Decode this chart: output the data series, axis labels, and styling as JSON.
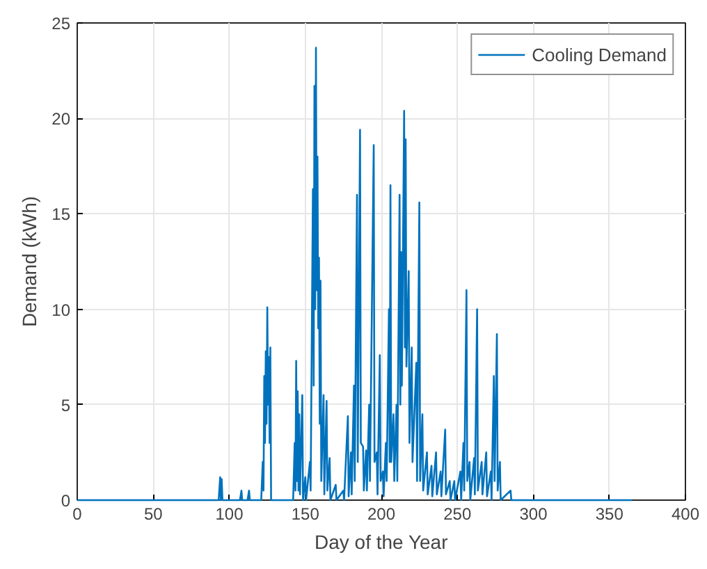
{
  "chart_data": {
    "type": "line",
    "xlabel": "Day of the Year",
    "ylabel": "Demand (kWh)",
    "xlim": [
      0,
      400
    ],
    "xticks": [
      0,
      50,
      100,
      150,
      200,
      250,
      300,
      350,
      400
    ],
    "ylim": [
      0,
      25
    ],
    "yticks": [
      0,
      5,
      10,
      15,
      20,
      25
    ],
    "grid": true,
    "legend": "top right",
    "series": [
      {
        "name": "Cooling Demand",
        "color": "#0072bd",
        "x": [
          0,
          90,
          93,
          94,
          94.5,
          95,
          95.5,
          107,
          108,
          108.5,
          112,
          113,
          113.5,
          121,
          122,
          122.5,
          123,
          123.5,
          124,
          124.5,
          125,
          125.5,
          126,
          126.5,
          127,
          127.5,
          142,
          143,
          143.5,
          144,
          144.5,
          145,
          145.5,
          146,
          146.5,
          148,
          148.5,
          150,
          150.5,
          153,
          153.5,
          155,
          155.5,
          156,
          156.5,
          157,
          157.5,
          158,
          158.5,
          159,
          159.5,
          160,
          160.5,
          162,
          162.5,
          164,
          164.5,
          166,
          166.5,
          170,
          170.5,
          175,
          175.5,
          178,
          178.5,
          180,
          180.5,
          182,
          182.5,
          184,
          184.5,
          186,
          186.5,
          188,
          188.5,
          190,
          190.5,
          192,
          192.5,
          195,
          195.5,
          197,
          197.5,
          199,
          199.5,
          201,
          201.5,
          203,
          203.5,
          205,
          205.5,
          206,
          206.5,
          208,
          208.5,
          210,
          210.5,
          212,
          212.5,
          213,
          213.5,
          215,
          215.5,
          216,
          216.5,
          218,
          218.5,
          220,
          220.5,
          223,
          223.5,
          225,
          225.5,
          227,
          227.5,
          230,
          230.5,
          233,
          233.5,
          236,
          236.5,
          239,
          239.5,
          242,
          242.5,
          245,
          245.5,
          248,
          248.5,
          252,
          252.5,
          254,
          254.5,
          256,
          256.5,
          258,
          258.5,
          261,
          261.5,
          263,
          263.5,
          266,
          266.5,
          269,
          269.5,
          272,
          272.5,
          274,
          274.5,
          276,
          276.5,
          278,
          278.5,
          285,
          285.5,
          365
        ],
        "values": [
          0,
          0,
          0,
          1.2,
          0,
          1.1,
          0,
          0,
          0.5,
          0,
          0,
          0.5,
          0,
          0,
          2,
          0.5,
          6.5,
          3,
          7.8,
          4,
          10.1,
          5,
          7.5,
          3,
          8,
          0,
          0,
          3,
          0.5,
          7.3,
          1,
          5.7,
          0.5,
          4.5,
          0.3,
          5.5,
          0,
          1.2,
          0,
          2,
          0.5,
          16.3,
          6,
          21.7,
          10,
          23.7,
          11,
          18,
          9,
          12.7,
          4,
          11.5,
          1,
          5.5,
          0.3,
          5.2,
          0.5,
          2.2,
          0,
          0.8,
          0,
          0.5,
          0,
          4.4,
          0.2,
          2.5,
          0.3,
          6,
          1,
          16,
          2,
          19.4,
          3,
          2.8,
          0.5,
          2.6,
          0.5,
          5,
          1,
          18.6,
          2,
          2.5,
          0.3,
          7.6,
          1,
          1.5,
          0.2,
          3,
          1,
          10,
          2,
          16.5,
          2,
          4.5,
          1,
          5,
          1,
          16,
          5,
          13,
          6,
          20.4,
          8,
          18.9,
          7,
          12,
          3,
          8,
          2,
          7.2,
          1,
          15.6,
          1,
          4.5,
          0.5,
          2.5,
          0.3,
          1.8,
          0.2,
          2.5,
          0.3,
          1.5,
          0.2,
          3.7,
          0.3,
          1,
          0,
          1,
          0,
          1.5,
          0,
          3,
          0.5,
          11,
          1,
          2,
          0,
          2.2,
          0.3,
          10,
          0.5,
          2,
          0.3,
          2.5,
          0.2,
          1.5,
          0,
          6.5,
          1,
          8.7,
          0.5,
          2,
          0,
          0.5,
          0,
          0
        ]
      }
    ]
  }
}
